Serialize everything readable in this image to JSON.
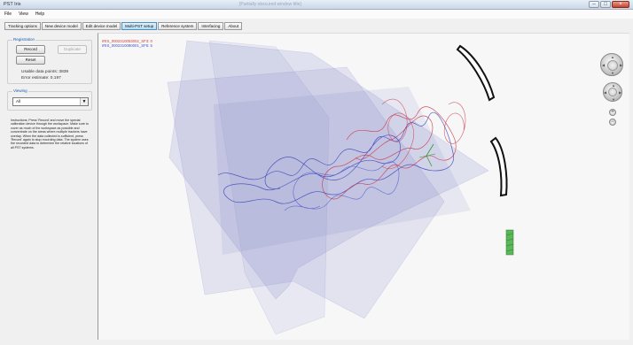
{
  "window": {
    "app_title": "PST Iris",
    "center_title": "[Partially obscured window title]"
  },
  "menu": [
    "File",
    "View",
    "Help"
  ],
  "tabs": [
    {
      "label": "Tracking options",
      "active": false
    },
    {
      "label": "New device model",
      "active": false
    },
    {
      "label": "Edit device model",
      "active": false
    },
    {
      "label": "Multi-PST setup",
      "active": true
    },
    {
      "label": "Reference system",
      "active": false
    },
    {
      "label": "Interfacing",
      "active": false
    },
    {
      "label": "About",
      "active": false
    }
  ],
  "registration": {
    "title": "Registration",
    "record_label": "Record",
    "reset_label": "Reset",
    "duplicate_label": "Duplicate",
    "usable_points": "Usable data points: 3839",
    "error_estimate": "Error estimate: 0.197"
  },
  "viewing": {
    "title": "Viewing",
    "selected": "All"
  },
  "instructions": "Instructions: Press 'Record' and move the special calibration device through the workspace. Make sure to cover as much of the workspace as possible and concentrate on the areas where multiple trackers have overlap. When the data collected is sufficient, press 'Record' again to stop recording data. The system uses the recorded data to determine the relative locations of all PST systems.",
  "viewport": {
    "legend": [
      "IRIS_0002310053002_SF3: 0",
      "IRIS_0002310080001_SF5: 5"
    ],
    "legend_colors": [
      "#d04040",
      "#4052c8"
    ],
    "zoom_in": "+",
    "zoom_out": "−",
    "nav_icon": "arrows-icon"
  }
}
